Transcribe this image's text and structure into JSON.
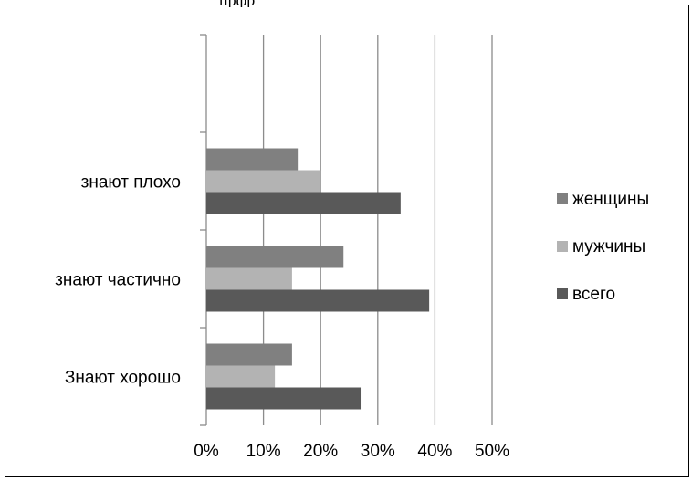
{
  "top_caption": "прфр",
  "chart_data": {
    "type": "bar",
    "orientation": "horizontal",
    "categories": [
      "Знают хорошо",
      "знают частично",
      "знают плохо",
      ""
    ],
    "series": [
      {
        "name": "женщины",
        "color": "#808080",
        "values": [
          15,
          24,
          16,
          null
        ]
      },
      {
        "name": "мужчины",
        "color": "#b3b3b3",
        "values": [
          12,
          15,
          20,
          null
        ]
      },
      {
        "name": "всего",
        "color": "#595959",
        "values": [
          27,
          39,
          34,
          null
        ]
      }
    ],
    "xlim": [
      0,
      50
    ],
    "xticks": [
      "0%",
      "10%",
      "20%",
      "30%",
      "40%",
      "50%"
    ],
    "xtick_values": [
      0,
      10,
      20,
      30,
      40,
      50
    ],
    "grid": true,
    "legend_position": "right"
  }
}
